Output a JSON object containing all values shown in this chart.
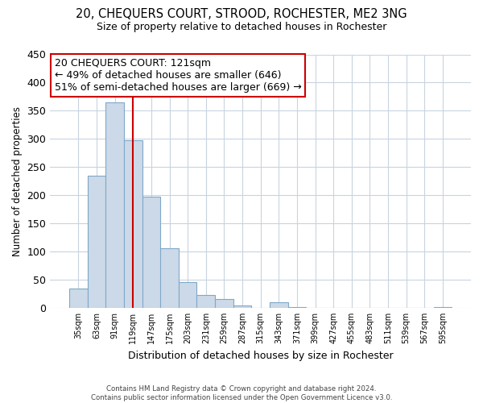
{
  "title": "20, CHEQUERS COURT, STROOD, ROCHESTER, ME2 3NG",
  "subtitle": "Size of property relative to detached houses in Rochester",
  "xlabel": "Distribution of detached houses by size in Rochester",
  "ylabel": "Number of detached properties",
  "bar_labels": [
    "35sqm",
    "63sqm",
    "91sqm",
    "119sqm",
    "147sqm",
    "175sqm",
    "203sqm",
    "231sqm",
    "259sqm",
    "287sqm",
    "315sqm",
    "343sqm",
    "371sqm",
    "399sqm",
    "427sqm",
    "455sqm",
    "483sqm",
    "511sqm",
    "539sqm",
    "567sqm",
    "595sqm"
  ],
  "bar_values": [
    34,
    234,
    365,
    297,
    198,
    106,
    46,
    23,
    16,
    4,
    0,
    10,
    1,
    0,
    0,
    0,
    0,
    0,
    0,
    0,
    2
  ],
  "bar_color": "#ccd9e8",
  "bar_edge_color": "#7fa8c8",
  "vline_color": "#cc0000",
  "ylim": [
    0,
    450
  ],
  "yticks": [
    0,
    50,
    100,
    150,
    200,
    250,
    300,
    350,
    400,
    450
  ],
  "annotation_line1": "20 CHEQUERS COURT: 121sqm",
  "annotation_line2": "← 49% of detached houses are smaller (646)",
  "annotation_line3": "51% of semi-detached houses are larger (669) →",
  "annotation_box_color": "#ffffff",
  "annotation_box_edge": "#cc0000",
  "footer_line1": "Contains HM Land Registry data © Crown copyright and database right 2024.",
  "footer_line2": "Contains public sector information licensed under the Open Government Licence v3.0.",
  "background_color": "#ffffff",
  "grid_color": "#c8d4e0"
}
